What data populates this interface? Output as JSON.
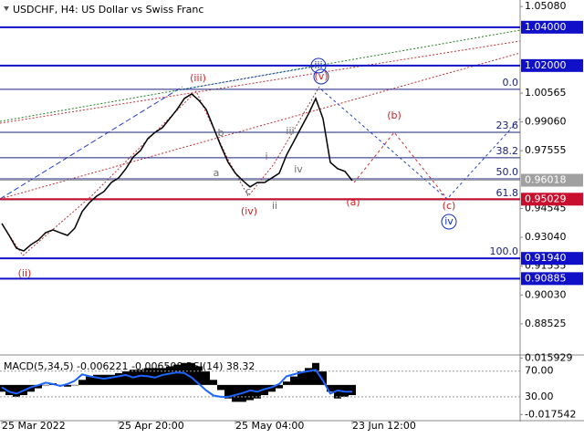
{
  "chart_data": {
    "type": "line",
    "title": "USDCHF, H4:  US Dollar vs Swiss Franc",
    "ylim": [
      0.8695,
      1.0542
    ],
    "xlim": [
      0,
      71
    ],
    "yticks": [
      {
        "value": 1.0508,
        "label": "1.05080"
      },
      {
        "value": 1.00565,
        "label": "1.00565"
      },
      {
        "value": 0.9906,
        "label": "0.99060"
      },
      {
        "value": 0.97555,
        "label": "0.97555"
      },
      {
        "value": 0.94545,
        "label": "0.94545"
      },
      {
        "value": 0.9304,
        "label": "0.93040"
      },
      {
        "value": 0.91535,
        "label": "0.91535"
      },
      {
        "value": 0.9003,
        "label": "0.90030"
      },
      {
        "value": 0.88525,
        "label": "0.88525"
      }
    ],
    "xticks": [
      {
        "value": 0,
        "label": "25 Mar 2022"
      },
      {
        "value": 16,
        "label": "25 Apr 20:00"
      },
      {
        "value": 32,
        "label": "25 May 04:00"
      },
      {
        "value": 48,
        "label": "23 Jun 12:00"
      }
    ],
    "series": [
      {
        "name": "USDCHF",
        "color": "#000000",
        "values": [
          0.9376,
          0.9314,
          0.9247,
          0.9233,
          0.9266,
          0.929,
          0.9328,
          0.9343,
          0.9328,
          0.9314,
          0.9352,
          0.9438,
          0.9485,
          0.9519,
          0.9543,
          0.959,
          0.9614,
          0.9662,
          0.9723,
          0.9757,
          0.9819,
          0.9852,
          0.9876,
          0.9923,
          0.9971,
          1.0028,
          1.0052,
          1.0018,
          0.9971,
          0.9876,
          0.9781,
          0.9695,
          0.9638,
          0.96,
          0.9567,
          0.959,
          0.959,
          0.9614,
          0.9638,
          0.9733,
          0.9804,
          0.9876,
          0.9947,
          1.0028,
          0.9923,
          0.9695,
          0.9662,
          0.9648,
          0.96
        ]
      }
    ],
    "levels": [
      {
        "value": 1.04,
        "label": "1.04000",
        "color": "#1010c8"
      },
      {
        "value": 1.02,
        "label": "1.02000",
        "color": "#1010c8"
      },
      {
        "value": 0.96018,
        "label": "0.96018",
        "color": "#a0a0a0"
      },
      {
        "value": 0.95029,
        "label": "0.95029",
        "color": "#c8102e"
      },
      {
        "value": 0.9194,
        "label": "0.91940",
        "color": "#1010c8"
      },
      {
        "value": 0.90885,
        "label": "0.90885",
        "color": "#1010c8"
      }
    ],
    "fibonacci": [
      {
        "value": 1.0076,
        "label": "0.0"
      },
      {
        "value": 0.9852,
        "label": "23.6"
      },
      {
        "value": 0.9719,
        "label": "38.2"
      },
      {
        "value": 0.9609,
        "label": "50.0"
      },
      {
        "value": 0.95,
        "label": "61.8"
      },
      {
        "value": 0.9194,
        "label": "100.0"
      }
    ],
    "annotations": [
      {
        "text": "(iii)",
        "color": "#d42020"
      },
      {
        "text": "(ii)",
        "color": "#d42020"
      },
      {
        "text": "(iv)",
        "color": "#d42020"
      },
      {
        "text": "(v)",
        "color": "#d42020"
      },
      {
        "text": "(a)",
        "color": "#d42020"
      },
      {
        "text": "(b)",
        "color": "#d42020"
      },
      {
        "text": "(c)",
        "color": "#d42020"
      },
      {
        "text": "iii",
        "color": "#1030c0"
      },
      {
        "text": "iv",
        "color": "#1030c0"
      },
      {
        "text": "a",
        "color": "#707070"
      },
      {
        "text": "b",
        "color": "#707070"
      },
      {
        "text": "c",
        "color": "#707070"
      },
      {
        "text": "i",
        "color": "#707070"
      },
      {
        "text": "ii",
        "color": "#707070"
      },
      {
        "text": "iii",
        "color": "#707070"
      },
      {
        "text": "iv",
        "color": "#707070"
      }
    ],
    "indicator": {
      "label": "MACD(5,34,5) -0.006221 -0.006598 RSI(14) 38.32",
      "macd_ylim": [
        -0.0206,
        0.0172
      ],
      "macd_yticks": [
        {
          "value": 0.015929,
          "label": "0.015929"
        },
        {
          "value": -0.017542,
          "label": "-0.017542"
        }
      ],
      "rsi_ylim": [
        -5.6,
        93.7
      ],
      "rsi_yticks": [
        {
          "value": 70,
          "label": "70.00"
        },
        {
          "value": 30,
          "label": "30.00"
        }
      ],
      "macd": [
        -0.004,
        -0.006,
        -0.007,
        -0.006,
        -0.004,
        -0.002,
        0,
        0.001,
        0,
        -0.001,
        0,
        0.003,
        0.005,
        0.006,
        0.006,
        0.006,
        0.007,
        0.008,
        0.009,
        0.009,
        0.01,
        0.01,
        0.01,
        0.011,
        0.012,
        0.013,
        0.013,
        0.011,
        0.008,
        0.003,
        -0.003,
        -0.008,
        -0.01,
        -0.01,
        -0.009,
        -0.008,
        -0.006,
        -0.004,
        -0.002,
        0.002,
        0.005,
        0.008,
        0.01,
        0.013,
        0.008,
        -0.004,
        -0.008,
        -0.007,
        -0.006
      ],
      "rsi": [
        45,
        38,
        35,
        40,
        45,
        48,
        52,
        50,
        47,
        50,
        55,
        65,
        62,
        60,
        58,
        60,
        62,
        64,
        60,
        63,
        62,
        60,
        64,
        66,
        68,
        67,
        60,
        50,
        40,
        32,
        30,
        30,
        33,
        36,
        40,
        38,
        42,
        45,
        50,
        62,
        65,
        68,
        70,
        72,
        55,
        35,
        40,
        38,
        38
      ],
      "rsi_color": "#1e64ff"
    }
  }
}
